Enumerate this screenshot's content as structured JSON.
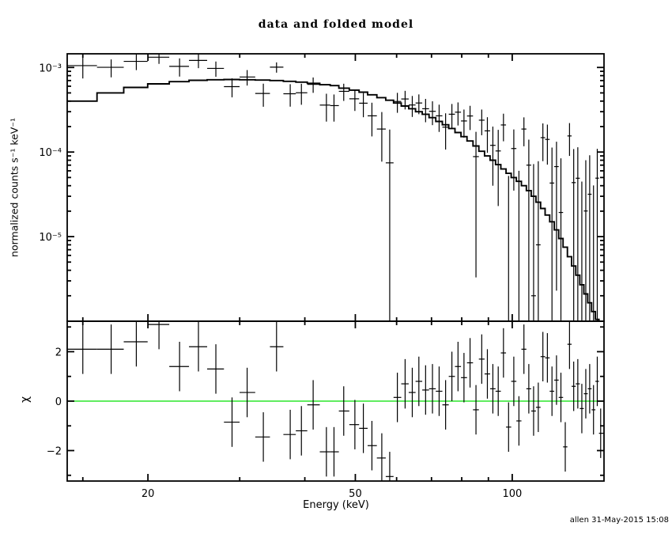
{
  "title": "data and folded model",
  "signature": "allen 31-May-2015 15:08",
  "colors": {
    "foreground": "#000000",
    "background": "#ffffff",
    "model_line": "#000000",
    "data_marks": "#000000",
    "zero_line": "#00e000"
  },
  "chart_data": [
    {
      "type": "scatter",
      "panel": "spectrum",
      "title": "data and folded model",
      "ylabel": "normalized counts s⁻¹ keV⁻¹",
      "xscale": "log",
      "yscale": "log",
      "xlim": [
        14,
        150
      ],
      "ylim": [
        1e-06,
        0.00145
      ],
      "grid": false,
      "xticks": {
        "major": [
          20,
          50,
          100
        ],
        "major_labels": [
          "20",
          "50",
          "100"
        ],
        "minor": [
          15,
          30,
          40,
          60,
          70,
          80,
          90
        ]
      },
      "yticks": {
        "major": [
          0.001,
          0.0001,
          1e-05
        ],
        "major_labels": [
          "10⁻³",
          "10⁻⁴",
          "10⁻⁵"
        ],
        "minor_mantissas": [
          2,
          3,
          4,
          5,
          6,
          7,
          8,
          9
        ]
      },
      "series": [
        {
          "name": "data",
          "marker": "cross",
          "x": [
            15,
            17,
            19,
            21,
            23,
            25,
            27,
            29,
            31,
            33.3,
            35.3,
            37.5,
            39.4,
            41.5,
            44,
            45.5,
            47.5,
            49.9,
            51.8,
            53.8,
            56.2,
            58.2,
            60.2,
            62.3,
            64.3,
            66.2,
            68.2,
            70.3,
            72.4,
            74.5,
            76.6,
            78.7,
            80.8,
            83,
            85.2,
            87.4,
            89.6,
            91.8,
            94,
            96.2,
            98.4,
            100.7,
            103,
            105.3,
            107.6,
            109.9,
            112.2,
            114.5,
            116.8,
            119.2,
            121.6,
            124,
            126.4,
            128.8,
            131.2,
            133.6,
            136,
            138.4,
            140.8,
            143.2,
            145.6,
            147.8
          ],
          "y": [
            0.001051,
            0.001004,
            0.00118,
            0.001322,
            0.00103,
            0.001211,
            0.000975,
            0.000593,
            0.000771,
            0.000493,
            0.001008,
            0.000489,
            0.000502,
            0.000631,
            0.000359,
            0.000354,
            0.000522,
            0.000426,
            0.000378,
            0.000268,
            0.000187,
            7.45e-05,
            0.000396,
            0.000424,
            0.00036,
            0.00038,
            0.000325,
            0.000303,
            0.000268,
            0.000197,
            0.00028,
            0.000296,
            0.000233,
            0.000267,
            8.83e-05,
            0.000238,
            0.000178,
            0.00012,
            0.000103,
            0.000209,
            -2.28e-05,
            0.00011,
            -1.5e-05,
            0.000187,
            7e-05,
            2e-06,
            8e-06,
            0.000148,
            0.000141,
            4.3e-05,
            6.73e-05,
            1.93e-05,
            -0.000113,
            0.000155,
            4.35e-05,
            4.9e-05,
            -1.53e-05,
            2.01e-05,
            3.17e-05,
            -1.97e-05,
            4.91e-05,
            -7.72e-05
          ],
          "yerr": [
            0.00031,
            0.00024,
            0.00025,
            0.00022,
            0.00025,
            0.00023,
            0.0002,
            0.00015,
            0.00016,
            0.00015,
            0.00014,
            0.000145,
            0.00014,
            0.00013,
            0.00013,
            0.000125,
            0.00012,
            0.00012,
            0.00012,
            0.000115,
            0.00011,
            0.00011,
            0.000105,
            0.000105,
            0.0001,
            0.0001,
            0.0001,
            9.5e-05,
            9.5e-05,
            9e-05,
            9e-05,
            9e-05,
            8.5e-05,
            8.5e-05,
            8.5e-05,
            8e-05,
            8e-05,
            8e-05,
            8e-05,
            7.5e-05,
            7.5e-05,
            7.5e-05,
            7.5e-05,
            7e-05,
            7e-05,
            7e-05,
            7e-05,
            7e-05,
            7e-05,
            7e-05,
            6.5e-05,
            6.5e-05,
            6.5e-05,
            6.5e-05,
            6.5e-05,
            6.5e-05,
            6e-05,
            6e-05,
            6e-05,
            6e-05,
            6e-05,
            6e-05
          ]
        },
        {
          "name": "folded model",
          "style": "histogram-step",
          "y": [
            0.0004,
            0.0005,
            0.00058,
            0.00064,
            0.00068,
            0.000705,
            0.000715,
            0.00072,
            0.000715,
            0.00071,
            0.0007,
            0.000685,
            0.00067,
            0.00065,
            0.000625,
            0.00061,
            0.00057,
            0.00054,
            0.00051,
            0.000475,
            0.00044,
            0.00041,
            0.00038,
            0.00035,
            0.000325,
            0.0003,
            0.00028,
            0.000255,
            0.00023,
            0.00021,
            0.00019,
            0.00017,
            0.000152,
            0.000135,
            0.000118,
            0.000102,
            9e-05,
            8e-05,
            7.1e-05,
            6.3e-05,
            5.6e-05,
            5e-05,
            4.5e-05,
            4e-05,
            3.5e-05,
            3e-05,
            2.55e-05,
            2.15e-05,
            1.8e-05,
            1.5e-05,
            1.2e-05,
            9.5e-06,
            7.5e-06,
            5.8e-06,
            4.5e-06,
            3.5e-06,
            2.7e-06,
            2.1e-06,
            1.65e-06,
            1.3e-06,
            1.05e-06,
            8.5e-07
          ]
        }
      ]
    },
    {
      "type": "scatter",
      "panel": "residuals",
      "xlabel": "Energy (keV)",
      "ylabel": "χ",
      "xscale": "log",
      "yscale": "linear",
      "xlim": [
        14,
        150
      ],
      "ylim": [
        -3.232,
        3.232
      ],
      "zero_line": 0,
      "xticks": {
        "major": [
          20,
          50,
          100
        ],
        "major_labels": [
          "20",
          "50",
          "100"
        ],
        "minor": [
          15,
          30,
          40,
          60,
          70,
          80,
          90
        ]
      },
      "yticks": {
        "major": [
          -2,
          0,
          2
        ],
        "major_labels": [
          "−2",
          "0",
          "2"
        ],
        "minor": [
          -3,
          -1,
          1,
          3
        ]
      },
      "series": [
        {
          "name": "chi",
          "marker": "cross",
          "x_ref": "chart_data.0.series.0.x",
          "y": [
            2.1,
            2.1,
            2.4,
            3.1,
            1.4,
            2.2,
            1.3,
            -0.85,
            0.35,
            -1.45,
            2.2,
            -1.35,
            -1.2,
            -0.15,
            -2.05,
            -2.05,
            -0.4,
            -0.95,
            -1.1,
            -1.8,
            -2.3,
            -3.05,
            0.15,
            0.7,
            0.35,
            0.8,
            0.45,
            0.5,
            0.4,
            -0.15,
            1.0,
            1.4,
            0.95,
            1.55,
            -0.35,
            1.7,
            1.1,
            0.5,
            0.4,
            1.95,
            -1.05,
            0.8,
            -0.8,
            2.1,
            0.5,
            -0.4,
            -0.25,
            1.8,
            1.75,
            0.4,
            0.85,
            0.15,
            -1.85,
            2.3,
            0.6,
            0.7,
            -0.3,
            0.3,
            0.5,
            -0.35,
            0.8,
            -1.3
          ],
          "yerr": 1.0
        }
      ]
    }
  ]
}
